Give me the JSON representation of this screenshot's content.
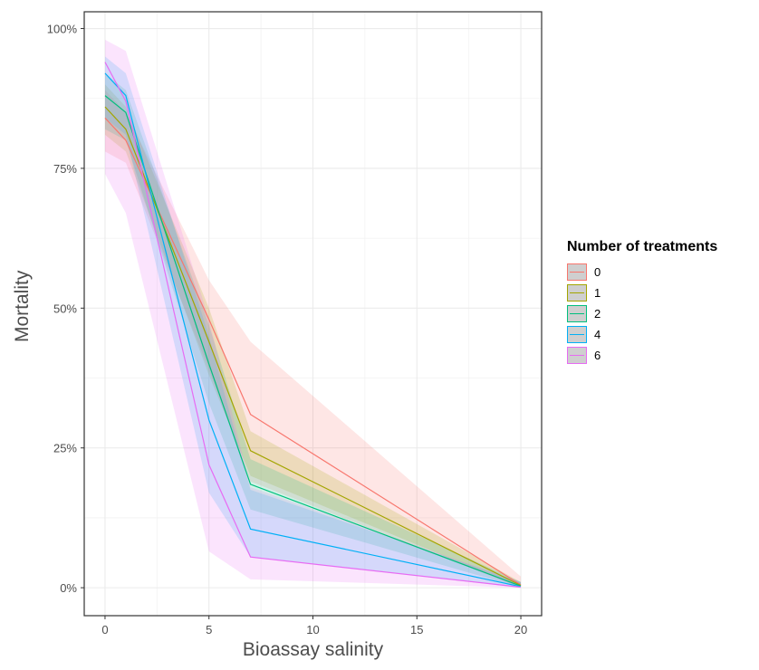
{
  "chart_data": {
    "type": "line",
    "title": "",
    "xlabel": "Bioassay salinity",
    "ylabel": "Mortality",
    "xlim": [
      -1,
      21
    ],
    "ylim": [
      -0.05,
      1.03
    ],
    "x_ticks": [
      0,
      5,
      10,
      15,
      20
    ],
    "x_tick_labels": [
      "0",
      "5",
      "10",
      "15",
      "20"
    ],
    "y_ticks": [
      0,
      0.25,
      0.5,
      0.75,
      1.0
    ],
    "y_tick_labels": [
      "0%",
      "25%",
      "50%",
      "75%",
      "100%"
    ],
    "grid": true,
    "legend": {
      "title": "Number of treatments",
      "placement": "right"
    },
    "x": [
      0,
      1,
      5,
      7,
      20
    ],
    "series": [
      {
        "name": "0",
        "color": "#F8766D",
        "values": [
          0.84,
          0.8,
          0.48,
          0.31,
          0.005
        ],
        "lower": [
          0.78,
          0.76,
          0.39,
          0.19,
          0.0
        ],
        "upper": [
          0.89,
          0.85,
          0.55,
          0.44,
          0.02
        ]
      },
      {
        "name": "1",
        "color": "#A3A500",
        "values": [
          0.86,
          0.82,
          0.44,
          0.245,
          0.004
        ],
        "lower": [
          0.81,
          0.78,
          0.38,
          0.2,
          0.0
        ],
        "upper": [
          0.9,
          0.86,
          0.5,
          0.28,
          0.01
        ]
      },
      {
        "name": "2",
        "color": "#00BF7D",
        "values": [
          0.88,
          0.85,
          0.4,
          0.185,
          0.003
        ],
        "lower": [
          0.82,
          0.8,
          0.33,
          0.14,
          0.0
        ],
        "upper": [
          0.92,
          0.89,
          0.47,
          0.23,
          0.01
        ]
      },
      {
        "name": "4",
        "color": "#00B0F6",
        "values": [
          0.92,
          0.88,
          0.3,
          0.105,
          0.002
        ],
        "lower": [
          0.84,
          0.81,
          0.17,
          0.055,
          0.0
        ],
        "upper": [
          0.95,
          0.92,
          0.45,
          0.175,
          0.01
        ]
      },
      {
        "name": "6",
        "color": "#E76BF3",
        "values": [
          0.94,
          0.87,
          0.22,
          0.055,
          0.001
        ],
        "lower": [
          0.74,
          0.67,
          0.065,
          0.015,
          0.0
        ],
        "upper": [
          0.98,
          0.96,
          0.48,
          0.18,
          0.01
        ]
      }
    ]
  }
}
